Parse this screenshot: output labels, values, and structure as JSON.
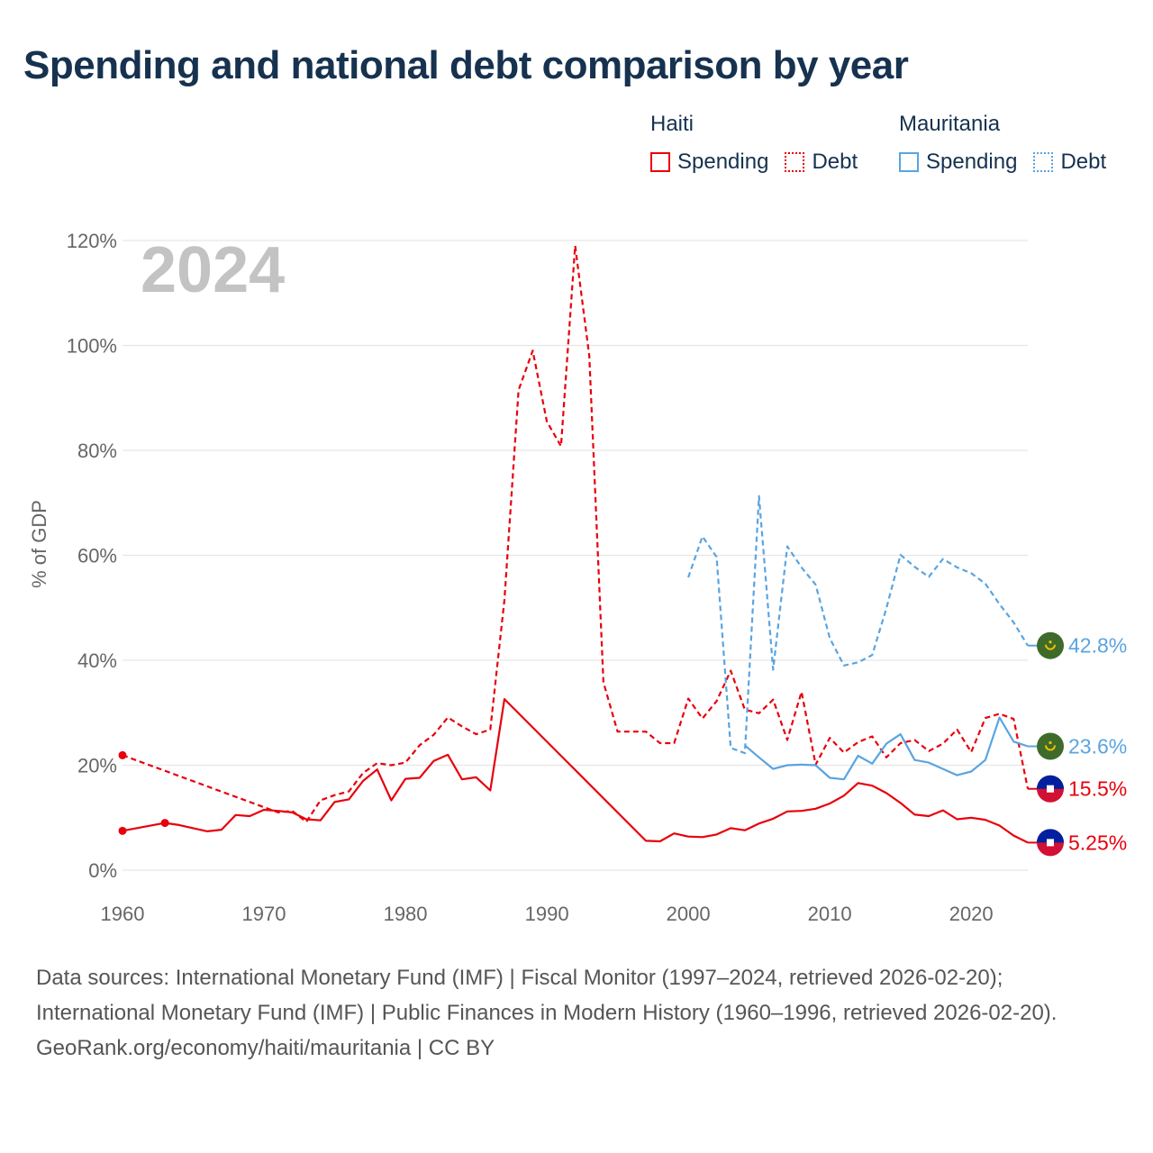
{
  "title": "Spending and national debt comparison by year",
  "legend": {
    "haiti": {
      "name": "Haiti",
      "spending_label": "Spending",
      "debt_label": "Debt"
    },
    "mauritania": {
      "name": "Mauritania",
      "spending_label": "Spending",
      "debt_label": "Debt"
    }
  },
  "colors": {
    "haiti": "#e8000b",
    "mauritania": "#5aa4e0",
    "year_watermark": "#c3c3c3"
  },
  "year_watermark": "2024",
  "footer": {
    "sources": "Data sources: International Monetary Fund (IMF) | Fiscal Monitor (1997–2024, retrieved 2026-02-20); International Monetary Fund (IMF) | Public Finances in Modern History (1960–1996, retrieved 2026-02-20).",
    "credit": "GeoRank.org/economy/haiti/mauritania | CC BY"
  },
  "chart_data": {
    "type": "line",
    "title": "Spending and national debt comparison by year",
    "xlabel": "",
    "ylabel": "% of GDP",
    "xlim": [
      1960,
      2024
    ],
    "ylim": [
      0,
      120
    ],
    "x_ticks": [
      1960,
      1970,
      1980,
      1990,
      2000,
      2010,
      2020
    ],
    "y_ticks": [
      0,
      20,
      40,
      60,
      80,
      100,
      120
    ],
    "y_tick_labels": [
      "0%",
      "20%",
      "40%",
      "60%",
      "80%",
      "100%",
      "120%"
    ],
    "series": [
      {
        "name": "Haiti Spending",
        "country": "Haiti",
        "metric": "Spending",
        "style": "solid",
        "color": "#e8000b",
        "end_label": "5.25%",
        "points": [
          [
            1960,
            7.5
          ],
          [
            1963,
            9.0
          ],
          [
            1964,
            8.6
          ],
          [
            1965,
            8.0
          ],
          [
            1966,
            7.4
          ],
          [
            1967,
            7.7
          ],
          [
            1968,
            10.5
          ],
          [
            1969,
            10.3
          ],
          [
            1970,
            11.5
          ],
          [
            1971,
            11.3
          ],
          [
            1972,
            11.0
          ],
          [
            1973,
            9.7
          ],
          [
            1974,
            9.5
          ],
          [
            1975,
            13.0
          ],
          [
            1976,
            13.5
          ],
          [
            1977,
            17.0
          ],
          [
            1978,
            19.2
          ],
          [
            1979,
            13.3
          ],
          [
            1980,
            17.4
          ],
          [
            1981,
            17.6
          ],
          [
            1982,
            20.8
          ],
          [
            1983,
            22.0
          ],
          [
            1984,
            17.3
          ],
          [
            1985,
            17.7
          ],
          [
            1986,
            15.2
          ],
          [
            1987,
            32.6
          ],
          [
            1997,
            5.6
          ],
          [
            1998,
            5.5
          ],
          [
            1999,
            7.0
          ],
          [
            2000,
            6.4
          ],
          [
            2001,
            6.3
          ],
          [
            2002,
            6.8
          ],
          [
            2003,
            8.0
          ],
          [
            2004,
            7.6
          ],
          [
            2005,
            8.9
          ],
          [
            2006,
            9.8
          ],
          [
            2007,
            11.2
          ],
          [
            2008,
            11.3
          ],
          [
            2009,
            11.7
          ],
          [
            2010,
            12.7
          ],
          [
            2011,
            14.2
          ],
          [
            2012,
            16.6
          ],
          [
            2013,
            16.1
          ],
          [
            2014,
            14.7
          ],
          [
            2015,
            12.8
          ],
          [
            2016,
            10.6
          ],
          [
            2017,
            10.3
          ],
          [
            2018,
            11.4
          ],
          [
            2019,
            9.7
          ],
          [
            2020,
            10.0
          ],
          [
            2021,
            9.6
          ],
          [
            2022,
            8.5
          ],
          [
            2023,
            6.6
          ],
          [
            2024,
            5.25
          ]
        ],
        "isolated_points": [
          [
            1960,
            7.5
          ],
          [
            1963,
            9.0
          ]
        ]
      },
      {
        "name": "Haiti Debt",
        "country": "Haiti",
        "metric": "Debt",
        "style": "dashed",
        "color": "#e8000b",
        "end_label": "15.5%",
        "points": [
          [
            1960,
            21.9
          ],
          [
            1970,
            12.0
          ],
          [
            1971,
            11.0
          ],
          [
            1972,
            11.3
          ],
          [
            1973,
            9.2
          ],
          [
            1974,
            13.3
          ],
          [
            1975,
            14.3
          ],
          [
            1976,
            15.0
          ],
          [
            1977,
            18.5
          ],
          [
            1978,
            20.4
          ],
          [
            1979,
            20.0
          ],
          [
            1980,
            20.5
          ],
          [
            1981,
            23.8
          ],
          [
            1982,
            25.8
          ],
          [
            1983,
            29.1
          ],
          [
            1984,
            27.4
          ],
          [
            1985,
            25.9
          ],
          [
            1986,
            26.8
          ],
          [
            1987,
            51.5
          ],
          [
            1988,
            91.5
          ],
          [
            1989,
            99.0
          ],
          [
            1990,
            85.5
          ],
          [
            1991,
            80.8
          ],
          [
            1992,
            119.0
          ],
          [
            1993,
            98.0
          ],
          [
            1994,
            35.8
          ],
          [
            1995,
            26.4
          ],
          [
            1996,
            26.4
          ],
          [
            1997,
            26.4
          ],
          [
            1998,
            24.2
          ],
          [
            1999,
            24.2
          ],
          [
            2000,
            32.7
          ],
          [
            2001,
            28.9
          ],
          [
            2002,
            32.2
          ],
          [
            2003,
            38.0
          ],
          [
            2004,
            30.6
          ],
          [
            2005,
            29.9
          ],
          [
            2006,
            32.5
          ],
          [
            2007,
            24.8
          ],
          [
            2008,
            34.0
          ],
          [
            2009,
            20.1
          ],
          [
            2010,
            25.2
          ],
          [
            2011,
            22.4
          ],
          [
            2012,
            24.4
          ],
          [
            2013,
            25.5
          ],
          [
            2014,
            21.5
          ],
          [
            2015,
            24.2
          ],
          [
            2016,
            24.8
          ],
          [
            2017,
            22.7
          ],
          [
            2018,
            24.1
          ],
          [
            2019,
            26.8
          ],
          [
            2020,
            22.5
          ],
          [
            2021,
            29.0
          ],
          [
            2022,
            29.8
          ],
          [
            2023,
            28.8
          ],
          [
            2024,
            15.5
          ]
        ],
        "isolated_points": [
          [
            1960,
            21.9
          ]
        ]
      },
      {
        "name": "Mauritania Spending",
        "country": "Mauritania",
        "metric": "Spending",
        "style": "solid",
        "color": "#5aa4e0",
        "end_label": "23.6%",
        "points": [
          [
            2004,
            23.8
          ],
          [
            2005,
            21.5
          ],
          [
            2006,
            19.3
          ],
          [
            2007,
            20.0
          ],
          [
            2008,
            20.1
          ],
          [
            2009,
            20.0
          ],
          [
            2010,
            17.6
          ],
          [
            2011,
            17.3
          ],
          [
            2012,
            21.8
          ],
          [
            2013,
            20.3
          ],
          [
            2014,
            24.1
          ],
          [
            2015,
            25.9
          ],
          [
            2016,
            21.0
          ],
          [
            2017,
            20.5
          ],
          [
            2018,
            19.3
          ],
          [
            2019,
            18.1
          ],
          [
            2020,
            18.8
          ],
          [
            2021,
            21.0
          ],
          [
            2022,
            29.1
          ],
          [
            2023,
            24.5
          ],
          [
            2024,
            23.6
          ]
        ],
        "isolated_points": []
      },
      {
        "name": "Mauritania Debt",
        "country": "Mauritania",
        "metric": "Debt",
        "style": "dashed",
        "color": "#5aa4e0",
        "end_label": "42.8%",
        "points": [
          [
            2000,
            55.8
          ],
          [
            2001,
            63.6
          ],
          [
            2002,
            59.7
          ],
          [
            2003,
            23.3
          ],
          [
            2004,
            22.3
          ],
          [
            2005,
            71.3
          ],
          [
            2006,
            38.2
          ],
          [
            2007,
            61.7
          ],
          [
            2008,
            57.7
          ],
          [
            2009,
            54.4
          ],
          [
            2010,
            44.2
          ],
          [
            2011,
            39.0
          ],
          [
            2012,
            39.6
          ],
          [
            2013,
            41.0
          ],
          [
            2014,
            49.9
          ],
          [
            2015,
            60.1
          ],
          [
            2016,
            57.8
          ],
          [
            2017,
            55.9
          ],
          [
            2018,
            59.3
          ],
          [
            2019,
            57.7
          ],
          [
            2020,
            56.6
          ],
          [
            2021,
            54.6
          ],
          [
            2022,
            50.7
          ],
          [
            2023,
            47.2
          ],
          [
            2024,
            42.8
          ]
        ],
        "isolated_points": []
      }
    ]
  }
}
